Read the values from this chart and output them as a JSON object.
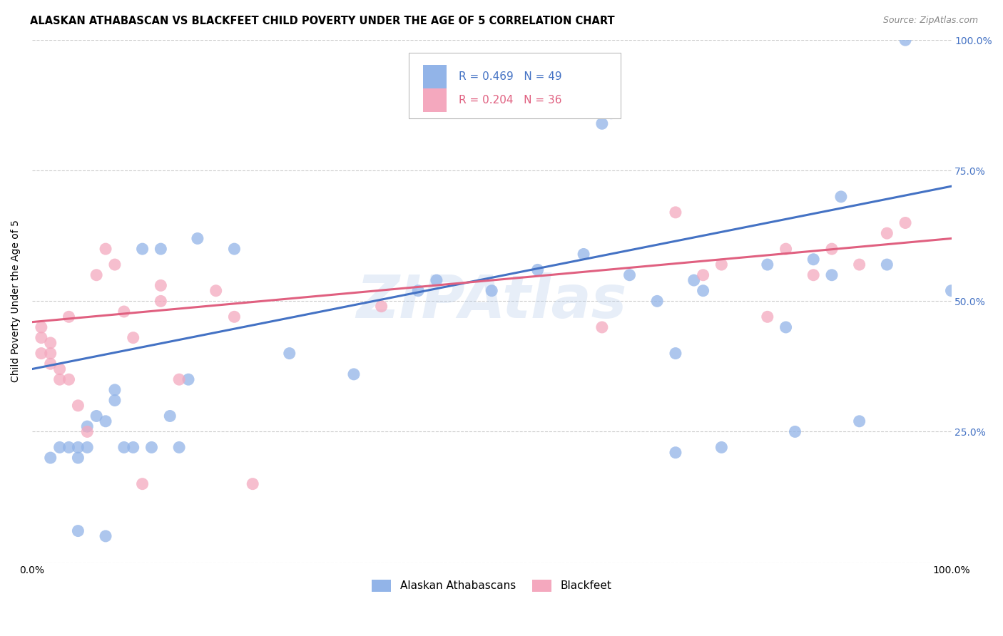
{
  "title": "ALASKAN ATHABASCAN VS BLACKFEET CHILD POVERTY UNDER THE AGE OF 5 CORRELATION CHART",
  "source": "Source: ZipAtlas.com",
  "ylabel": "Child Poverty Under the Age of 5",
  "legend_labels": [
    "Alaskan Athabascans",
    "Blackfeet"
  ],
  "blue_color": "#92B4E8",
  "pink_color": "#F4A8BE",
  "blue_line_color": "#4472C4",
  "pink_line_color": "#E06080",
  "watermark": "ZIPAtlas",
  "legend_r1": "R = 0.469",
  "legend_n1": "N = 49",
  "legend_r2": "R = 0.204",
  "legend_n2": "N = 36",
  "blue_scatter_x": [
    0.02,
    0.03,
    0.04,
    0.05,
    0.05,
    0.05,
    0.06,
    0.06,
    0.07,
    0.08,
    0.08,
    0.09,
    0.09,
    0.1,
    0.11,
    0.12,
    0.13,
    0.14,
    0.15,
    0.16,
    0.17,
    0.18,
    0.22,
    0.28,
    0.35,
    0.42,
    0.44,
    0.5,
    0.55,
    0.6,
    0.62,
    0.63,
    0.65,
    0.68,
    0.7,
    0.73,
    0.75,
    0.8,
    0.82,
    0.83,
    0.85,
    0.87,
    0.88,
    0.9,
    0.93,
    0.95,
    1.0,
    0.7,
    0.72
  ],
  "blue_scatter_y": [
    0.2,
    0.22,
    0.22,
    0.2,
    0.22,
    0.06,
    0.22,
    0.26,
    0.28,
    0.05,
    0.27,
    0.31,
    0.33,
    0.22,
    0.22,
    0.6,
    0.22,
    0.6,
    0.28,
    0.22,
    0.35,
    0.62,
    0.6,
    0.4,
    0.36,
    0.52,
    0.54,
    0.52,
    0.56,
    0.59,
    0.84,
    0.86,
    0.55,
    0.5,
    0.4,
    0.52,
    0.22,
    0.57,
    0.45,
    0.25,
    0.58,
    0.55,
    0.7,
    0.27,
    0.57,
    1.0,
    0.52,
    0.21,
    0.54
  ],
  "pink_scatter_x": [
    0.01,
    0.01,
    0.01,
    0.02,
    0.02,
    0.02,
    0.03,
    0.03,
    0.04,
    0.04,
    0.05,
    0.06,
    0.07,
    0.08,
    0.09,
    0.1,
    0.11,
    0.12,
    0.14,
    0.14,
    0.16,
    0.22,
    0.24,
    0.38,
    0.62,
    0.7,
    0.73,
    0.75,
    0.8,
    0.82,
    0.85,
    0.87,
    0.9,
    0.93,
    0.95,
    0.2
  ],
  "pink_scatter_y": [
    0.4,
    0.43,
    0.45,
    0.38,
    0.4,
    0.42,
    0.35,
    0.37,
    0.35,
    0.47,
    0.3,
    0.25,
    0.55,
    0.6,
    0.57,
    0.48,
    0.43,
    0.15,
    0.5,
    0.53,
    0.35,
    0.47,
    0.15,
    0.49,
    0.45,
    0.67,
    0.55,
    0.57,
    0.47,
    0.6,
    0.55,
    0.6,
    0.57,
    0.63,
    0.65,
    0.52
  ],
  "blue_line_x": [
    0.0,
    1.0
  ],
  "blue_line_y": [
    0.37,
    0.72
  ],
  "pink_line_x": [
    0.0,
    1.0
  ],
  "pink_line_y": [
    0.46,
    0.62
  ],
  "xlim": [
    0.0,
    1.0
  ],
  "ylim": [
    0.0,
    1.0
  ],
  "background_color": "#FFFFFF",
  "grid_color": "#CCCCCC"
}
